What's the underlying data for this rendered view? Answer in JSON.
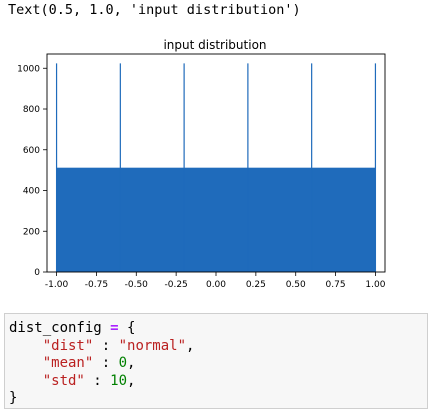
{
  "output_text": "Text(0.5, 1.0, 'input distribution')",
  "chart_data": {
    "type": "bar",
    "title": "input distribution",
    "xlabel": "",
    "ylabel": "",
    "xlim": [
      -1.06,
      1.06
    ],
    "ylim": [
      0,
      1070
    ],
    "x_ticks": [
      "-1.00",
      "-0.75",
      "-0.50",
      "-0.25",
      "0.00",
      "0.25",
      "0.50",
      "0.75",
      "1.00"
    ],
    "y_ticks": [
      "0",
      "200",
      "400",
      "600",
      "800",
      "1000"
    ],
    "color": "#1f6bbb",
    "base_level": 512,
    "spikes": [
      {
        "x": -1.0,
        "value": 1024
      },
      {
        "x": -0.6,
        "value": 1024
      },
      {
        "x": -0.2,
        "value": 1024
      },
      {
        "x": 0.2,
        "value": 1024
      },
      {
        "x": 0.6,
        "value": 1024
      },
      {
        "x": 1.0,
        "value": 1024
      }
    ]
  },
  "code_cell": {
    "line1": {
      "name": "dist_config",
      "op": "=",
      "brace": "{"
    },
    "line2": {
      "key": "\"dist\"",
      "sep": " : ",
      "value": "\"normal\"",
      "comma": ","
    },
    "line3": {
      "key": "\"mean\"",
      "sep": " : ",
      "value": "0",
      "comma": ","
    },
    "line4": {
      "key": "\"std\"",
      "sep": " : ",
      "value": "10",
      "comma": ","
    },
    "line5": {
      "brace": "}"
    }
  }
}
